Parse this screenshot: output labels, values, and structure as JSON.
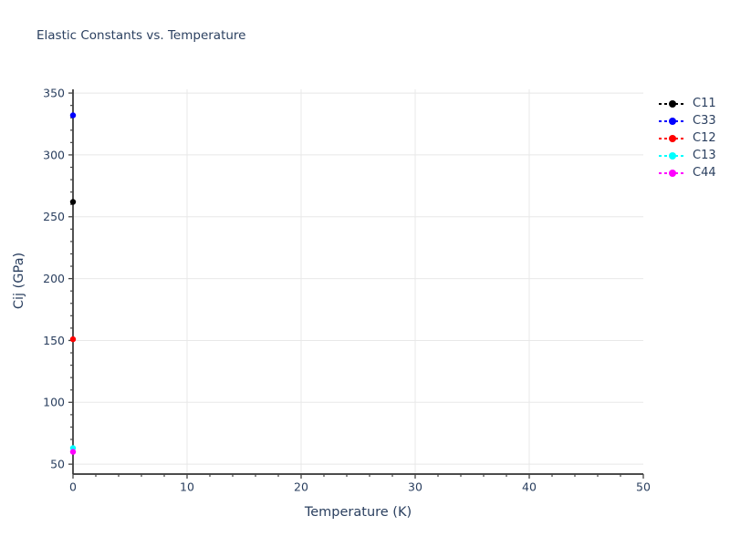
{
  "chart_data": {
    "type": "scatter",
    "mode": "lines+markers",
    "line_style": "dashed",
    "title": "Elastic Constants vs. Temperature",
    "xlabel": "Temperature (K)",
    "ylabel": "Cij (GPa)",
    "x": [
      0
    ],
    "series": [
      {
        "name": "C11",
        "color": "#000000",
        "values": [
          262
        ]
      },
      {
        "name": "C33",
        "color": "#0000ff",
        "values": [
          332
        ]
      },
      {
        "name": "C12",
        "color": "#ff0000",
        "values": [
          151
        ]
      },
      {
        "name": "C13",
        "color": "#00ffff",
        "values": [
          63
        ]
      },
      {
        "name": "C44",
        "color": "#ff00ff",
        "values": [
          60
        ]
      }
    ],
    "xlim": [
      0,
      50
    ],
    "ylim": [
      42,
      353
    ],
    "xticks": [
      0,
      10,
      20,
      30,
      40,
      50
    ],
    "yticks": [
      50,
      100,
      150,
      200,
      250,
      300,
      350
    ],
    "minor_xtick_step": 2,
    "minor_ytick_step": 10,
    "grid": true,
    "legend_position": "top-right"
  },
  "colors": {
    "text": "#2a3f5f",
    "axis_line": "#333333",
    "tick": "#444444",
    "gridline": "#e8e8e8",
    "background": "#ffffff"
  }
}
